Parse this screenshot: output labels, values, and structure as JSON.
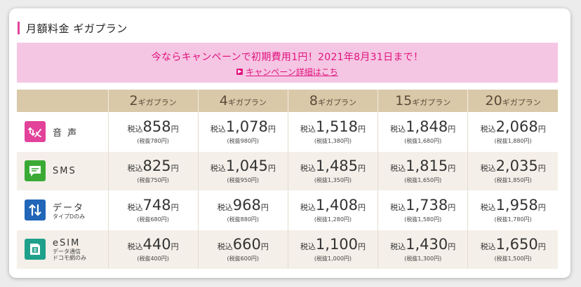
{
  "section": {
    "title": "月額料金 ギガプラン"
  },
  "campaign": {
    "text": "今ならキャンペーンで初期費用1円！2021年8月31日まで！",
    "link": "キャンペーン詳細はこち"
  },
  "colors": {
    "accent_pink": "#e2429a",
    "banner_bg": "#f5c6e3",
    "header_bg": "#d9c9a9",
    "row_alt_bg": "#f4efe8",
    "voice_icon": "#e2429a",
    "sms_icon": "#3aaa35",
    "data_icon": "#2166b8",
    "esim_icon": "#1fa08a"
  },
  "plans": [
    {
      "num": "2",
      "unit": "ギガプラン"
    },
    {
      "num": "4",
      "unit": "ギガプラン"
    },
    {
      "num": "8",
      "unit": "ギガプラン"
    },
    {
      "num": "15",
      "unit": "ギガプラン"
    },
    {
      "num": "20",
      "unit": "ギガプラン"
    }
  ],
  "price_labels": {
    "tax_in": "税込",
    "yen": "円"
  },
  "rows": [
    {
      "label": "音 声",
      "sub": [],
      "icon": "phone-call-icon",
      "prices": [
        {
          "amount": "858",
          "sub": "(税抜780円)"
        },
        {
          "amount": "1,078",
          "sub": "(税抜980円)"
        },
        {
          "amount": "1,518",
          "sub": "(税抜1,380円)"
        },
        {
          "amount": "1,848",
          "sub": "(税抜1,680円)"
        },
        {
          "amount": "2,068",
          "sub": "(税抜1,880円)"
        }
      ]
    },
    {
      "label": "SMS",
      "sub": [],
      "icon": "message-icon",
      "prices": [
        {
          "amount": "825",
          "sub": "(税抜750円)"
        },
        {
          "amount": "1,045",
          "sub": "(税抜950円)"
        },
        {
          "amount": "1,485",
          "sub": "(税抜1,350円)"
        },
        {
          "amount": "1,815",
          "sub": "(税抜1,650円)"
        },
        {
          "amount": "2,035",
          "sub": "(税抜1,850円)"
        }
      ]
    },
    {
      "label": "データ",
      "sub": [
        "タイプDのみ"
      ],
      "icon": "data-arrows-icon",
      "prices": [
        {
          "amount": "748",
          "sub": "(税抜680円)"
        },
        {
          "amount": "968",
          "sub": "(税抜880円)"
        },
        {
          "amount": "1,408",
          "sub": "(税抜1,280円)"
        },
        {
          "amount": "1,738",
          "sub": "(税抜1,580円)"
        },
        {
          "amount": "1,958",
          "sub": "(税抜1,780円)"
        }
      ]
    },
    {
      "label": "eSIM",
      "sub": [
        "データ通信",
        "ドコモ網のみ"
      ],
      "icon": "esim-icon",
      "prices": [
        {
          "amount": "440",
          "sub": "(税抜400円)"
        },
        {
          "amount": "660",
          "sub": "(税抜600円)"
        },
        {
          "amount": "1,100",
          "sub": "(税抜1,000円)"
        },
        {
          "amount": "1,430",
          "sub": "(税抜1,300円)"
        },
        {
          "amount": "1,650",
          "sub": "(税抜1,500円)"
        }
      ]
    }
  ]
}
